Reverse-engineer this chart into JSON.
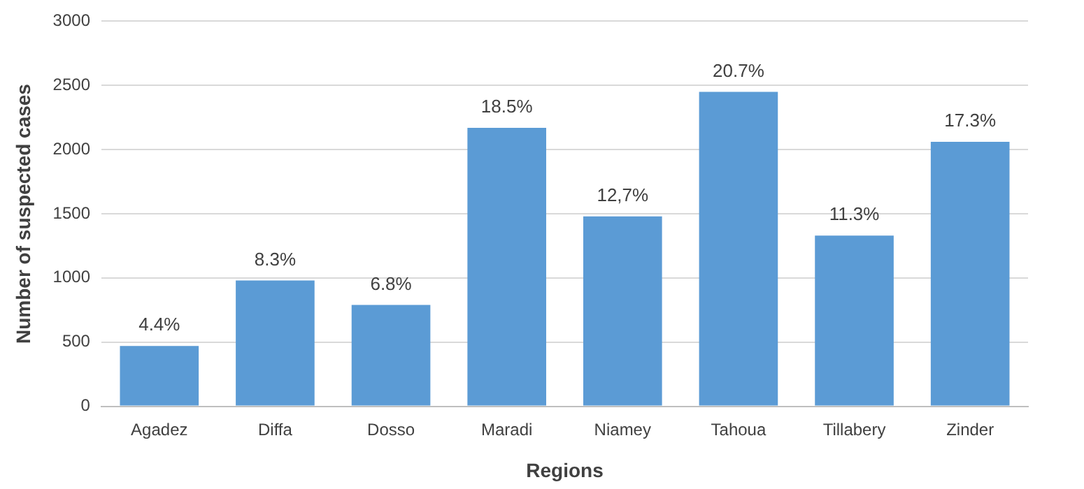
{
  "chart_data": {
    "type": "bar",
    "xlabel": "Regions",
    "ylabel": "Number of suspected cases",
    "categories": [
      "Agadez",
      "Diffa",
      "Dosso",
      "Maradi",
      "Niamey",
      "Tahoua",
      "Tillabery",
      "Zinder"
    ],
    "values": [
      470,
      980,
      790,
      2170,
      1480,
      2450,
      1330,
      2060
    ],
    "annotations": [
      {
        "text": "4.4%",
        "x": "Agadez",
        "y": 470
      },
      {
        "text": "8.3%",
        "x": "Diffa",
        "y": 980
      },
      {
        "text": "6.8%",
        "x": "Dosso",
        "y": 790
      },
      {
        "text": "18.5%",
        "x": "Maradi",
        "y": 2170
      },
      {
        "text": "12,7%",
        "x": "Niamey",
        "y": 1480
      },
      {
        "text": "20.7%",
        "x": "Tahoua",
        "y": 2450
      },
      {
        "text": "11.3%",
        "x": "Tillabery",
        "y": 1330
      },
      {
        "text": "17.3%",
        "x": "Zinder",
        "y": 2060
      }
    ],
    "color": "#5b9bd5",
    "ylim": [
      0,
      3000
    ],
    "yticks": [
      0,
      500,
      1000,
      1500,
      2000,
      2500,
      3000
    ],
    "grid": "y"
  }
}
